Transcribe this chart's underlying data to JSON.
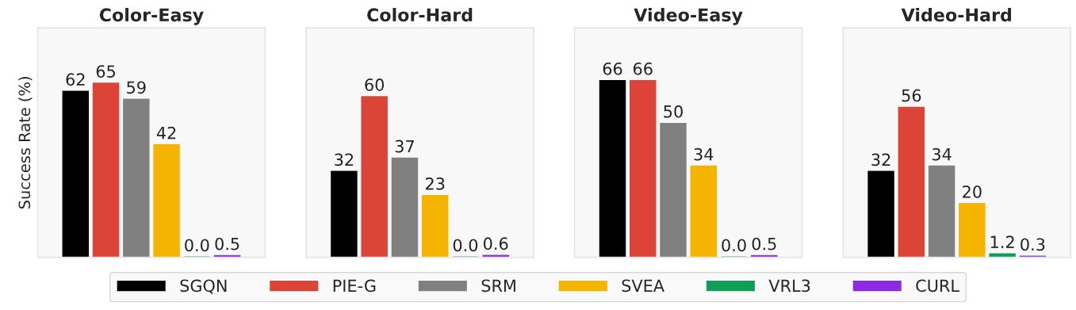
{
  "chart_data": [
    {
      "type": "bar",
      "title": "Color-Easy",
      "ylabel": "Success Rate (%)",
      "categories": [
        null
      ],
      "legend": "bottom",
      "series": [
        {
          "name": "SGQN",
          "color": "#000000",
          "values": [
            62
          ],
          "value_labels": [
            "62"
          ]
        },
        {
          "name": "PIE-G",
          "color": "#db4437",
          "values": [
            65
          ],
          "value_labels": [
            "65"
          ]
        },
        {
          "name": "SRM",
          "color": "#808080",
          "values": [
            59
          ],
          "value_labels": [
            "59"
          ]
        },
        {
          "name": "SVEA",
          "color": "#f4b400",
          "values": [
            42
          ],
          "value_labels": [
            "42"
          ]
        },
        {
          "name": "VRL3",
          "color": "#0f9d58",
          "values": [
            0.0
          ],
          "value_labels": [
            "0.0"
          ]
        },
        {
          "name": "CURL",
          "color": "#8a2be2",
          "values": [
            0.5
          ],
          "value_labels": [
            "0.5"
          ]
        }
      ]
    },
    {
      "type": "bar",
      "title": "Color-Hard",
      "categories": [
        null
      ],
      "series": [
        {
          "color": "#000000",
          "values": [
            32
          ],
          "value_labels": [
            "32"
          ]
        },
        {
          "color": "#db4437",
          "values": [
            60
          ],
          "value_labels": [
            "60"
          ]
        },
        {
          "color": "#808080",
          "values": [
            37
          ],
          "value_labels": [
            "37"
          ]
        },
        {
          "color": "#f4b400",
          "values": [
            23
          ],
          "value_labels": [
            "23"
          ]
        },
        {
          "color": "#0f9d58",
          "values": [
            0.0
          ],
          "value_labels": [
            "0.0"
          ]
        },
        {
          "color": "#8a2be2",
          "values": [
            0.6
          ],
          "value_labels": [
            "0.6"
          ]
        }
      ]
    },
    {
      "type": "bar",
      "title": "Video-Easy",
      "categories": [
        null
      ],
      "series": [
        {
          "color": "#000000",
          "values": [
            66
          ],
          "value_labels": [
            "66"
          ]
        },
        {
          "color": "#db4437",
          "values": [
            66
          ],
          "value_labels": [
            "66"
          ]
        },
        {
          "color": "#808080",
          "values": [
            50
          ],
          "value_labels": [
            "50"
          ]
        },
        {
          "color": "#f4b400",
          "values": [
            34
          ],
          "value_labels": [
            "34"
          ]
        },
        {
          "color": "#0f9d58",
          "values": [
            0.0
          ],
          "value_labels": [
            "0.0"
          ]
        },
        {
          "color": "#8a2be2",
          "values": [
            0.5
          ],
          "value_labels": [
            "0.5"
          ]
        }
      ]
    },
    {
      "type": "bar",
      "title": "Video-Hard",
      "categories": [
        null
      ],
      "series": [
        {
          "color": "#000000",
          "values": [
            32
          ],
          "value_labels": [
            "32"
          ]
        },
        {
          "color": "#db4437",
          "values": [
            56
          ],
          "value_labels": [
            "56"
          ]
        },
        {
          "color": "#808080",
          "values": [
            34
          ],
          "value_labels": [
            "34"
          ]
        },
        {
          "color": "#f4b400",
          "values": [
            20
          ],
          "value_labels": [
            "20"
          ]
        },
        {
          "color": "#0f9d58",
          "values": [
            1.2
          ],
          "value_labels": [
            "1.2"
          ]
        },
        {
          "color": "#8a2be2",
          "values": [
            0.3
          ],
          "value_labels": [
            "0.3"
          ]
        }
      ]
    }
  ]
}
